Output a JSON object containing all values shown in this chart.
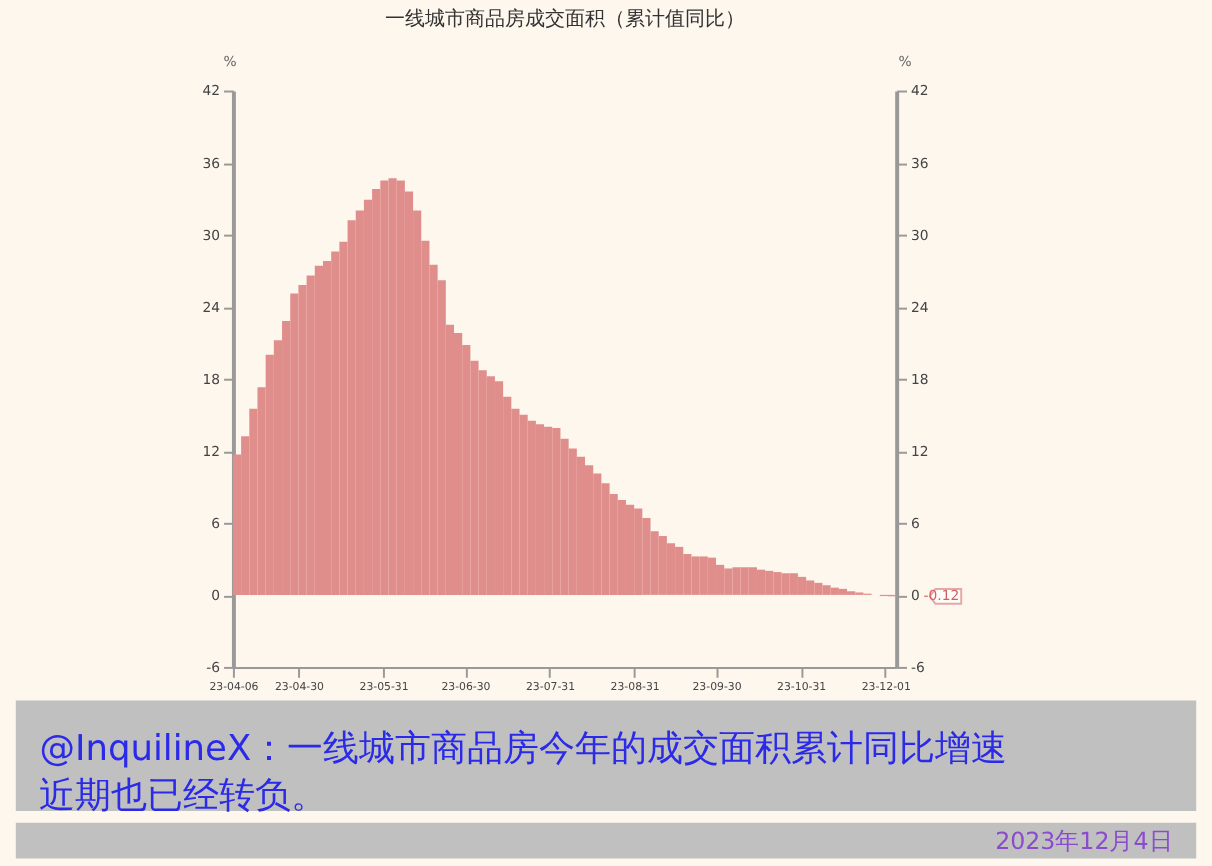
{
  "chart_data": {
    "type": "bar",
    "title": "一线城市商品房成交面积（累计值同比）",
    "ylabel": "%",
    "y2label": "%",
    "x": [
      "2023-04-06",
      "2023-04-09",
      "2023-04-12",
      "2023-04-15",
      "2023-04-18",
      "2023-04-21",
      "2023-04-24",
      "2023-04-27",
      "2023-04-30",
      "2023-05-03",
      "2023-05-06",
      "2023-05-09",
      "2023-05-12",
      "2023-05-15",
      "2023-05-18",
      "2023-05-21",
      "2023-05-24",
      "2023-05-27",
      "2023-05-30",
      "2023-06-02",
      "2023-06-05",
      "2023-06-08",
      "2023-06-11",
      "2023-06-14",
      "2023-06-17",
      "2023-06-20",
      "2023-06-23",
      "2023-06-26",
      "2023-06-29",
      "2023-07-02",
      "2023-07-05",
      "2023-07-08",
      "2023-07-11",
      "2023-07-14",
      "2023-07-17",
      "2023-07-20",
      "2023-07-23",
      "2023-07-26",
      "2023-07-29",
      "2023-08-01",
      "2023-08-04",
      "2023-08-07",
      "2023-08-10",
      "2023-08-13",
      "2023-08-16",
      "2023-08-19",
      "2023-08-22",
      "2023-08-25",
      "2023-08-28",
      "2023-08-31",
      "2023-09-03",
      "2023-09-06",
      "2023-09-09",
      "2023-09-12",
      "2023-09-15",
      "2023-09-18",
      "2023-09-21",
      "2023-09-24",
      "2023-09-27",
      "2023-09-30",
      "2023-10-03",
      "2023-10-06",
      "2023-10-09",
      "2023-10-12",
      "2023-10-15",
      "2023-10-18",
      "2023-10-21",
      "2023-10-24",
      "2023-10-27",
      "2023-10-30",
      "2023-11-02",
      "2023-11-05",
      "2023-11-08",
      "2023-11-11",
      "2023-11-14",
      "2023-11-17",
      "2023-11-20",
      "2023-11-23",
      "2023-11-26",
      "2023-11-29",
      "2023-12-02"
    ],
    "series": [
      {
        "color": "#e08e8c",
        "values": [
          11.7,
          13.2,
          15.5,
          17.3,
          20.0,
          21.2,
          22.8,
          25.1,
          25.8,
          26.6,
          27.4,
          27.8,
          28.6,
          29.4,
          31.2,
          32.0,
          32.9,
          33.8,
          34.5,
          34.7,
          34.5,
          33.6,
          32.0,
          29.5,
          27.5,
          26.2,
          22.5,
          21.8,
          20.8,
          19.5,
          18.7,
          18.2,
          17.8,
          16.5,
          15.5,
          15.0,
          14.5,
          14.2,
          14.0,
          13.9,
          13.0,
          12.2,
          11.5,
          10.8,
          10.1,
          9.3,
          8.4,
          7.9,
          7.5,
          7.2,
          6.4,
          5.3,
          4.9,
          4.3,
          4.0,
          3.4,
          3.2,
          3.2,
          3.1,
          2.5,
          2.2,
          2.3,
          2.3,
          2.3,
          2.1,
          2.0,
          1.9,
          1.8,
          1.8,
          1.5,
          1.2,
          1.0,
          0.8,
          0.6,
          0.5,
          0.3,
          0.2,
          0.1,
          0.0,
          -0.1,
          -0.12
        ]
      }
    ],
    "xlim": [
      "2023-04-06",
      "2023-12-05"
    ],
    "xticks": [
      {
        "value": "2023-04-06",
        "label": "23-04-06"
      },
      {
        "value": "2023-04-30",
        "label": "23-04-30"
      },
      {
        "value": "2023-05-31",
        "label": "23-05-31"
      },
      {
        "value": "2023-06-30",
        "label": "23-06-30"
      },
      {
        "value": "2023-07-31",
        "label": "23-07-31"
      },
      {
        "value": "2023-08-31",
        "label": "23-08-31"
      },
      {
        "value": "2023-09-30",
        "label": "23-09-30"
      },
      {
        "value": "2023-10-31",
        "label": "23-10-31"
      },
      {
        "value": "2023-12-01",
        "label": "23-12-01"
      }
    ],
    "ylim": [
      -6,
      42
    ],
    "yticks": [
      -6,
      0,
      6,
      12,
      18,
      24,
      30,
      36,
      42
    ],
    "y2lim": [
      -6,
      42
    ],
    "y2ticks": [
      -6,
      0,
      6,
      12,
      18,
      24,
      30,
      36,
      42
    ],
    "grid": false,
    "annotations": [
      {
        "text": "-0.12",
        "x": "2023-12-02",
        "y": -0.12
      },
      "@InquilineX：一线城市商品房今年的成交面积累计同比增速近期也已经转负。",
      "2023年12月4日"
    ]
  }
}
